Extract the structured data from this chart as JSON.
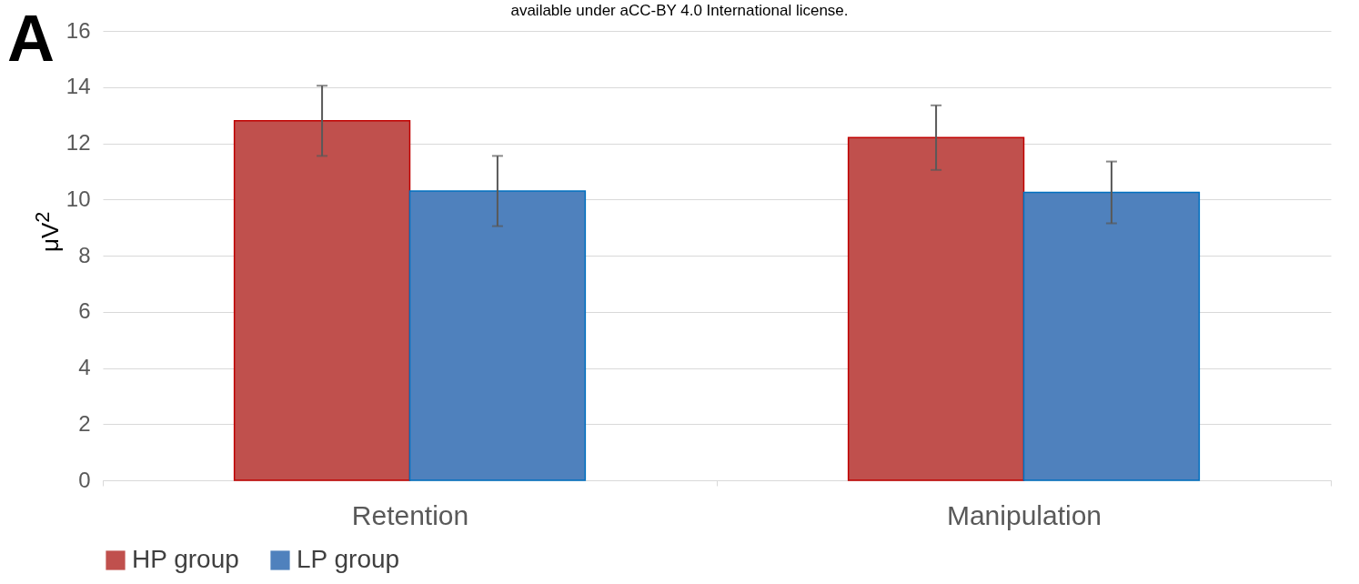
{
  "chart_data": {
    "type": "bar",
    "ylabel": "μV$^{2}$",
    "categories": [
      "Retention",
      "Manipulation"
    ],
    "series": [
      {
        "name": "HP group",
        "color": "#c0504d",
        "values": [
          12.8,
          12.2
        ],
        "errors": [
          1.25,
          1.15
        ]
      },
      {
        "name": "LP group",
        "color": "#4f81bd",
        "values": [
          10.3,
          10.25
        ],
        "errors": [
          1.25,
          1.1
        ]
      }
    ],
    "ylim": [
      0,
      16
    ],
    "yticks": [
      0,
      2,
      4,
      6,
      8,
      10,
      12,
      14,
      16
    ],
    "grid": "y",
    "legend": "bottom",
    "annotations": [
      "A",
      "available under aCC-BY 4.0 International license."
    ]
  }
}
